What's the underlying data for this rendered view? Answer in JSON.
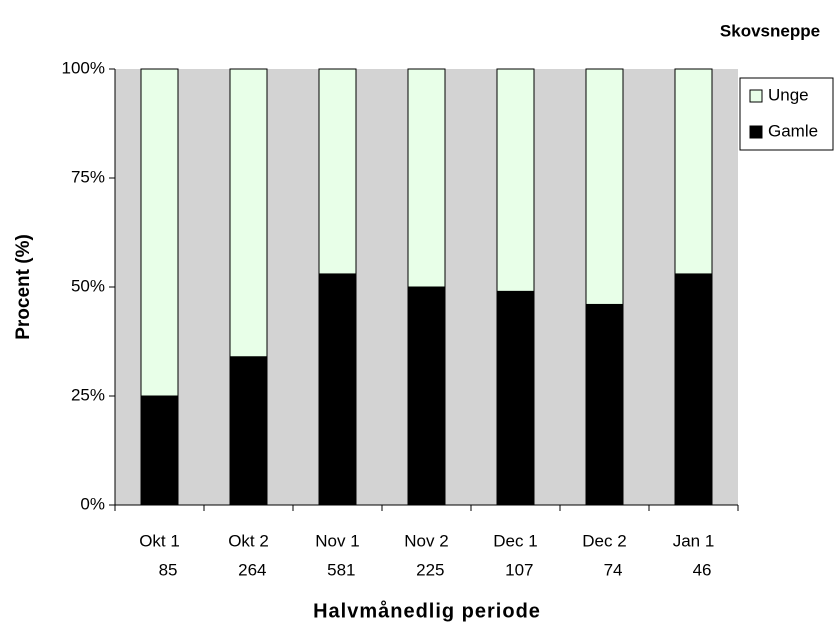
{
  "chart_data": {
    "type": "bar",
    "stacked": true,
    "title": "Skovsneppe",
    "x_label": "Halvmånedlig periode",
    "y_label": "Procent (%)",
    "categories": [
      "Okt 1",
      "Okt 2",
      "Nov 1",
      "Nov 2",
      "Dec 1",
      "Dec 2",
      "Jan 1"
    ],
    "category_counts": [
      85,
      264,
      581,
      225,
      107,
      74,
      46
    ],
    "series": [
      {
        "name": "Gamle",
        "color": "#000000",
        "values": [
          25,
          34,
          53,
          50,
          49,
          46,
          53
        ]
      },
      {
        "name": "Unge",
        "color": "#e8ffe8",
        "values": [
          75,
          66,
          47,
          50,
          51,
          54,
          47
        ]
      }
    ],
    "ylim": [
      0,
      100
    ],
    "yticks": [
      {
        "value": 0,
        "label": "0%"
      },
      {
        "value": 25,
        "label": "25%"
      },
      {
        "value": 50,
        "label": "50%"
      },
      {
        "value": 75,
        "label": "75%"
      },
      {
        "value": 100,
        "label": "100%"
      }
    ],
    "plot_background": "#d3d3d3",
    "legend": "right"
  }
}
